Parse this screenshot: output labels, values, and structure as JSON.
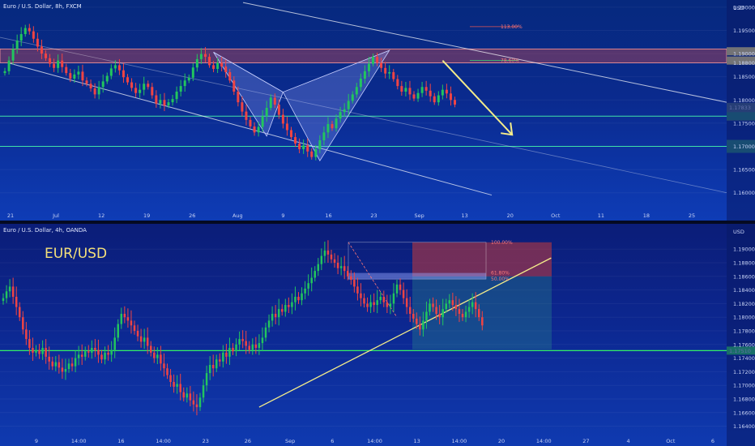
{
  "chart_data": [
    {
      "type": "candlestick",
      "title": "Euro / U.S. Dollar, 8h, FXCM",
      "currency": "USD",
      "ylim": [
        1.1575,
        1.2005
      ],
      "y_ticks": [
        "1.20000",
        "1.19500",
        "1.19000",
        "1.18800",
        "1.18500",
        "1.18000",
        "1.17500",
        "1.17000",
        "1.16500",
        "1.16000"
      ],
      "x_ticks": [
        "21",
        "Jul",
        "12",
        "19",
        "26",
        "Aug",
        "9",
        "16",
        "23",
        "Sep",
        "13",
        "20",
        "Oct",
        "11",
        "18",
        "25"
      ],
      "price_labels": [
        "1.17833",
        "04:56:00"
      ],
      "fib_levels": [
        {
          "label": "113.00%",
          "price": 1.1958
        },
        {
          "label": "78.60%",
          "price": 1.1885
        }
      ],
      "resistance_zone": [
        1.188,
        1.191
      ],
      "support_levels": [
        1.1765,
        1.17
      ],
      "pattern": "bat",
      "pattern_points": [
        {
          "t": 51,
          "price": 1.1903
        },
        {
          "t": 64,
          "price": 1.1722
        },
        {
          "t": 68,
          "price": 1.1817
        },
        {
          "t": 77,
          "price": 1.1669
        },
        {
          "t": 94,
          "price": 1.1907
        }
      ],
      "forecast_arrow": [
        {
          "t": 107,
          "price": 1.1885
        },
        {
          "t": 124,
          "price": 1.1725
        }
      ],
      "closes": [
        1.1862,
        1.1885,
        1.191,
        1.1928,
        1.1942,
        1.1955,
        1.1948,
        1.1932,
        1.1915,
        1.19,
        1.189,
        1.1878,
        1.1869,
        1.1885,
        1.1871,
        1.1858,
        1.1846,
        1.1855,
        1.1861,
        1.1842,
        1.1835,
        1.1825,
        1.1812,
        1.1828,
        1.184,
        1.1852,
        1.1868,
        1.1875,
        1.1864,
        1.1849,
        1.1838,
        1.1826,
        1.1815,
        1.1822,
        1.1835,
        1.1828,
        1.181,
        1.1792,
        1.18,
        1.1788,
        1.1795,
        1.1802,
        1.1818,
        1.183,
        1.1842,
        1.1848,
        1.187,
        1.1888,
        1.1899,
        1.1893,
        1.1875,
        1.1867,
        1.188,
        1.1872,
        1.186,
        1.1842,
        1.1818,
        1.1795,
        1.1775,
        1.1757,
        1.1743,
        1.173,
        1.1742,
        1.1765,
        1.1783,
        1.1805,
        1.179,
        1.1768,
        1.1749,
        1.1735,
        1.172,
        1.1706,
        1.1694,
        1.1702,
        1.1689,
        1.1677,
        1.1694,
        1.1713,
        1.173,
        1.1748,
        1.1739,
        1.176,
        1.1774,
        1.178,
        1.1798,
        1.1812,
        1.1828,
        1.1846,
        1.1862,
        1.1878,
        1.1893,
        1.188,
        1.1869,
        1.1857,
        1.186,
        1.1845,
        1.183,
        1.1818,
        1.1826,
        1.1812,
        1.1803,
        1.1815,
        1.1828,
        1.182,
        1.1808,
        1.1795,
        1.181,
        1.1822,
        1.1814,
        1.18,
        1.179
      ]
    },
    {
      "type": "candlestick",
      "title": "Euro / U.S. Dollar, 4h, OANDA",
      "annotation": "EUR/USD",
      "currency": "USD",
      "ylim": [
        1.163,
        1.193
      ],
      "y_ticks": [
        "1.19000",
        "1.18800",
        "1.18600",
        "1.18400",
        "1.18200",
        "1.18000",
        "1.17800",
        "1.17600",
        "1.17400",
        "1.17200",
        "1.17000",
        "1.16800",
        "1.16600",
        "1.16400"
      ],
      "x_ticks": [
        "9",
        "14:00",
        "16",
        "14:00",
        "23",
        "26",
        "Sep",
        "6",
        "14:00",
        "13",
        "14:00",
        "20",
        "14:00",
        "27",
        "4",
        "Oct",
        "6"
      ],
      "price_labels": [
        "1.17510"
      ],
      "fib_levels": [
        {
          "label": "100.00%",
          "price": 1.191
        },
        {
          "label": "61.80%",
          "price": 1.1865
        },
        {
          "label": "50.00%",
          "price": 1.1856
        }
      ],
      "support_level": 1.1751,
      "trendline": [
        {
          "t": 78,
          "price": 1.1668
        },
        {
          "t": 167,
          "price": 1.1887
        }
      ],
      "short_position": {
        "entry": 1.186,
        "stop": 1.191,
        "target": 1.1753
      },
      "closes": [
        1.1828,
        1.1838,
        1.1845,
        1.183,
        1.1815,
        1.18,
        1.1782,
        1.1768,
        1.1755,
        1.1748,
        1.1752,
        1.1746,
        1.1755,
        1.1742,
        1.1735,
        1.1728,
        1.1734,
        1.1726,
        1.172,
        1.1724,
        1.1732,
        1.1728,
        1.174,
        1.1745,
        1.1742,
        1.175,
        1.1748,
        1.1755,
        1.1752,
        1.1745,
        1.1738,
        1.1748,
        1.1745,
        1.1752,
        1.177,
        1.179,
        1.1805,
        1.18,
        1.1795,
        1.1788,
        1.178,
        1.1772,
        1.1764,
        1.177,
        1.1758,
        1.1748,
        1.174,
        1.1745,
        1.1732,
        1.1725,
        1.1715,
        1.1705,
        1.1698,
        1.1702,
        1.169,
        1.1682,
        1.1688,
        1.1678,
        1.1672,
        1.1668,
        1.1682,
        1.17,
        1.1718,
        1.173,
        1.1725,
        1.1738,
        1.1735,
        1.1748,
        1.1742,
        1.1755,
        1.175,
        1.176,
        1.1768,
        1.1765,
        1.1758,
        1.1752,
        1.176,
        1.1755,
        1.1762,
        1.177,
        1.1785,
        1.1795,
        1.1805,
        1.18,
        1.1812,
        1.1808,
        1.1818,
        1.1815,
        1.1822,
        1.183,
        1.1825,
        1.1835,
        1.1842,
        1.185,
        1.1858,
        1.1868,
        1.1878,
        1.189,
        1.1898,
        1.1892,
        1.1885,
        1.188,
        1.1872,
        1.1875,
        1.1868,
        1.186,
        1.1855,
        1.1845,
        1.1835,
        1.1828,
        1.182,
        1.1815,
        1.1822,
        1.1818,
        1.1825,
        1.183,
        1.1822,
        1.1815,
        1.182,
        1.1835,
        1.1848,
        1.184,
        1.1828,
        1.1815,
        1.1805,
        1.1798,
        1.179,
        1.1782,
        1.1795,
        1.1808,
        1.182,
        1.1815,
        1.1805,
        1.18,
        1.1812,
        1.182,
        1.1825,
        1.1818,
        1.1812,
        1.1805,
        1.18,
        1.1808,
        1.1815,
        1.1822,
        1.1812,
        1.18,
        1.1788
      ]
    }
  ]
}
